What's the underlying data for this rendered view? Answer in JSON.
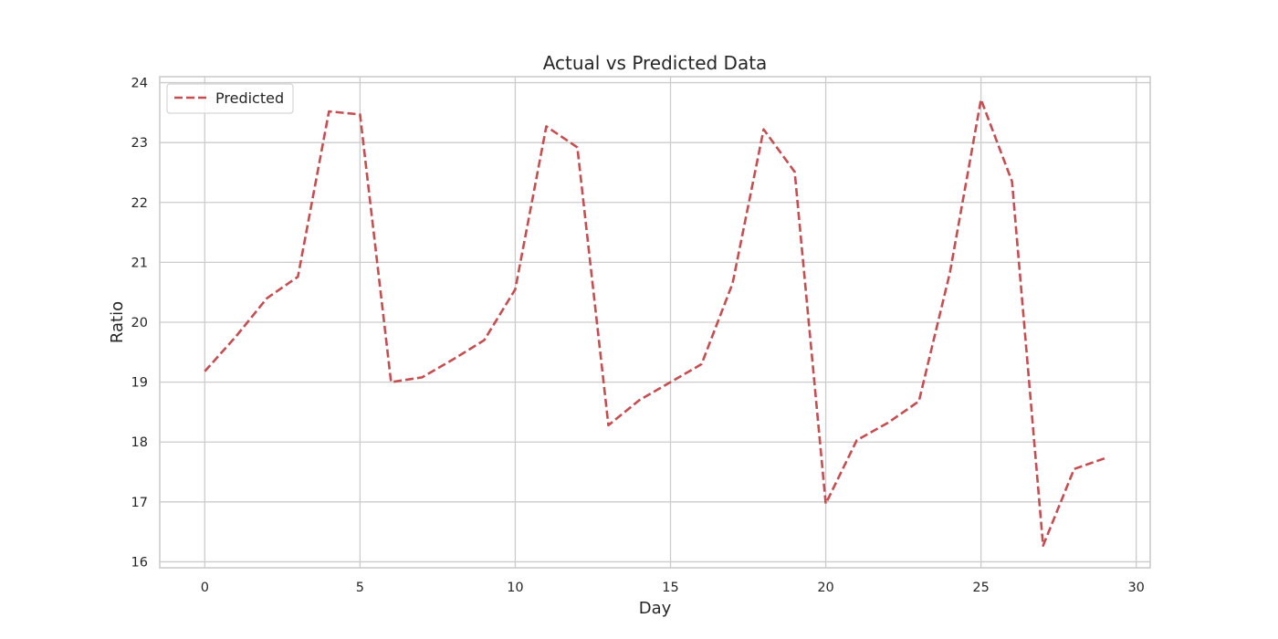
{
  "chart_data": {
    "type": "line",
    "title": "Actual vs Predicted Data",
    "xlabel": "Day",
    "ylabel": "Ratio",
    "xlim": [
      -1.45,
      30.45
    ],
    "ylim": [
      15.9,
      24.1
    ],
    "xticks": [
      0,
      5,
      10,
      15,
      20,
      25,
      30
    ],
    "yticks": [
      16,
      17,
      18,
      19,
      20,
      21,
      22,
      23,
      24
    ],
    "grid": true,
    "legend_position": "top-left",
    "series": [
      {
        "name": "Predicted",
        "color": "#c44e52",
        "line_style": "dashed",
        "x": [
          0,
          1,
          2,
          3,
          4,
          5,
          6,
          7,
          8,
          9,
          10,
          11,
          12,
          13,
          14,
          15,
          16,
          17,
          18,
          19,
          20,
          21,
          22,
          23,
          24,
          25,
          26,
          27,
          28,
          29
        ],
        "y": [
          19.18,
          19.76,
          20.4,
          20.76,
          23.52,
          23.47,
          19.0,
          19.08,
          19.38,
          19.7,
          20.55,
          23.27,
          22.92,
          18.28,
          18.7,
          19.0,
          19.3,
          20.65,
          23.22,
          22.51,
          16.97,
          18.03,
          18.32,
          18.68,
          20.83,
          23.72,
          22.35,
          16.27,
          17.55,
          17.73
        ]
      }
    ]
  }
}
